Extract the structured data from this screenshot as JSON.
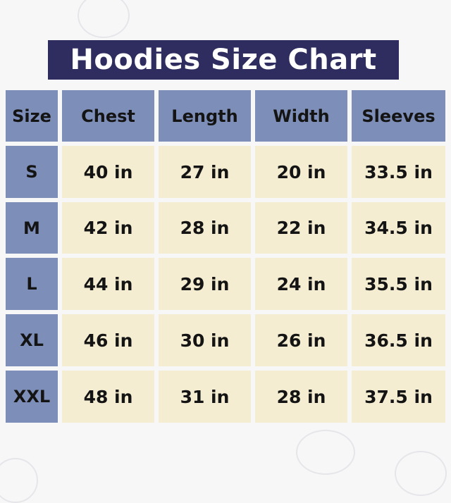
{
  "title": "Hoodies Size Chart",
  "headers": [
    "Size",
    "Chest",
    "Length",
    "Width",
    "Sleeves"
  ],
  "rows": [
    [
      "S",
      "40 in",
      "27 in",
      "20 in",
      "33.5 in"
    ],
    [
      "M",
      "42 in",
      "28 in",
      "22 in",
      "34.5 in"
    ],
    [
      "L",
      "44 in",
      "29 in",
      "24 in",
      "35.5 in"
    ],
    [
      "XL",
      "46 in",
      "30 in",
      "26 in",
      "36.5 in"
    ],
    [
      "XXL",
      "48 in",
      "31 in",
      "28 in",
      "37.5 in"
    ]
  ],
  "colors": {
    "title_bg": "#2f2c5f",
    "header_bg": "#7d8eb8",
    "cell_bg": "#f4edd1"
  }
}
